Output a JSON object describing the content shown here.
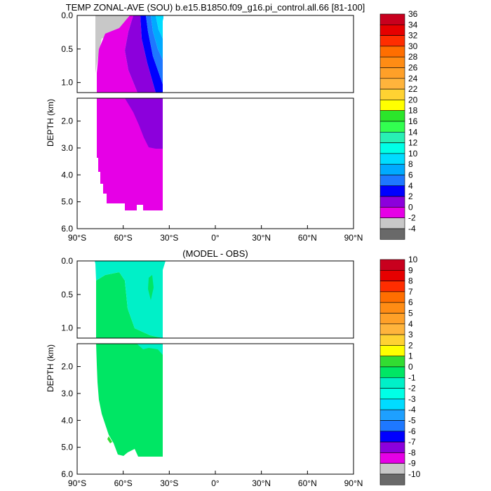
{
  "chart_data": [
    {
      "type": "contour",
      "title": "TEMP ZONAL-AVE (SOU) b.e15.B1850.f09_g16.pi_control.all.66 [81-100]",
      "xlabel": "",
      "ylabel": "DEPTH (km)",
      "xlim": [
        -90,
        90
      ],
      "ylim": [
        6.0,
        0.0
      ],
      "y_axis_break_km": 1.15,
      "xticks": [
        {
          "value": -90,
          "label": "90°S"
        },
        {
          "value": -60,
          "label": "60°S"
        },
        {
          "value": -30,
          "label": "30°S"
        },
        {
          "value": 0,
          "label": "0°"
        },
        {
          "value": 30,
          "label": "30°N"
        },
        {
          "value": 60,
          "label": "60°N"
        },
        {
          "value": 90,
          "label": "90°N"
        }
      ],
      "yticks_upper": [
        {
          "value": 0.0,
          "label": "0.0"
        },
        {
          "value": 0.5,
          "label": "0.5"
        },
        {
          "value": 1.0,
          "label": "1.0"
        }
      ],
      "yticks_lower": [
        {
          "value": 2.0,
          "label": "2.0"
        },
        {
          "value": 3.0,
          "label": "3.0"
        },
        {
          "value": 4.0,
          "label": "4.0"
        },
        {
          "value": 5.0,
          "label": "5.0"
        },
        {
          "value": 6.0,
          "label": "6.0"
        }
      ],
      "colorbar": {
        "labels": [
          "36",
          "34",
          "32",
          "30",
          "28",
          "26",
          "24",
          "22",
          "20",
          "18",
          "16",
          "14",
          "12",
          "10",
          "8",
          "6",
          "4",
          "2",
          "0",
          "-2",
          "-4"
        ],
        "colors": [
          "#c8001e",
          "#e60000",
          "#ff2d00",
          "#ff6e00",
          "#ff8c14",
          "#ffa028",
          "#ffb43c",
          "#ffd232",
          "#ffff00",
          "#2be62b",
          "#32ff50",
          "#28f0b4",
          "#00ffe6",
          "#00dcff",
          "#00aaff",
          "#1e78ff",
          "#0000ff",
          "#8c00dc",
          "#e600e6",
          "#c8c8c8",
          "#696969"
        ]
      },
      "regions": [
        {
          "label": "-2 to 0 °C",
          "color": "#c8c8c8",
          "x": [
            -78.5,
            -72
          ],
          "depth": [
            0.0,
            0.3
          ]
        },
        {
          "label": "0 to 2 °C",
          "color": "#e600e6",
          "x": [
            -77.5,
            -34
          ],
          "depth": [
            0.2,
            5.35
          ]
        },
        {
          "label": "2 to 4 °C",
          "color": "#8c00dc",
          "x": [
            -57,
            -34
          ],
          "depth": [
            0.0,
            3.1
          ]
        },
        {
          "label": "4 to 6 °C",
          "color": "#0000ff",
          "x": [
            -52,
            -34
          ],
          "depth": [
            0.0,
            1.0
          ]
        },
        {
          "label": "6 to 8 °C",
          "color": "#1e78ff",
          "x": [
            -48,
            -34
          ],
          "depth": [
            0.0,
            0.7
          ]
        },
        {
          "label": "8 to 10 °C",
          "color": "#00aaff",
          "x": [
            -45,
            -34
          ],
          "depth": [
            0.0,
            0.45
          ]
        },
        {
          "label": "10 to 14 °C",
          "color": "#00dcff",
          "x": [
            -40,
            -34
          ],
          "depth": [
            0.0,
            0.25
          ]
        }
      ]
    },
    {
      "type": "contour",
      "title": "(MODEL - OBS)",
      "xlabel": "",
      "ylabel": "DEPTH (km)",
      "xlim": [
        -90,
        90
      ],
      "ylim": [
        6.0,
        0.0
      ],
      "y_axis_break_km": 1.15,
      "xticks": [
        {
          "value": -90,
          "label": "90°S"
        },
        {
          "value": -60,
          "label": "60°S"
        },
        {
          "value": -30,
          "label": "30°S"
        },
        {
          "value": 0,
          "label": "0°"
        },
        {
          "value": 30,
          "label": "30°N"
        },
        {
          "value": 60,
          "label": "60°N"
        },
        {
          "value": 90,
          "label": "90°N"
        }
      ],
      "yticks_upper": [
        {
          "value": 0.0,
          "label": "0.0"
        },
        {
          "value": 0.5,
          "label": "0.5"
        },
        {
          "value": 1.0,
          "label": "1.0"
        }
      ],
      "yticks_lower": [
        {
          "value": 2.0,
          "label": "2.0"
        },
        {
          "value": 3.0,
          "label": "3.0"
        },
        {
          "value": 4.0,
          "label": "4.0"
        },
        {
          "value": 5.0,
          "label": "5.0"
        },
        {
          "value": 6.0,
          "label": "6.0"
        }
      ],
      "colorbar": {
        "labels": [
          "10",
          "9",
          "8",
          "7",
          "6",
          "5",
          "4",
          "3",
          "2",
          "1",
          "0",
          "-1",
          "-2",
          "-3",
          "-4",
          "-5",
          "-6",
          "-7",
          "-8",
          "-9",
          "-10"
        ],
        "colors": [
          "#c8001e",
          "#e60000",
          "#ff2d00",
          "#ff6e00",
          "#ff8c14",
          "#ffa028",
          "#ffb43c",
          "#ffd232",
          "#ffff00",
          "#32dc32",
          "#00e664",
          "#00f0c8",
          "#00ffe6",
          "#00dcff",
          "#1ea0ff",
          "#1e78ff",
          "#0000ff",
          "#8c00dc",
          "#e600e6",
          "#c8c8c8",
          "#696969"
        ]
      },
      "regions": [
        {
          "label": "0 to 1 °C",
          "color": "#00e664",
          "x": [
            -77.5,
            -34
          ],
          "depth": [
            0.1,
            5.35
          ]
        },
        {
          "label": "-1 to 0 °C",
          "color": "#00f0c8",
          "x": [
            -78,
            -34
          ],
          "depth": [
            0.0,
            1.25
          ]
        }
      ]
    }
  ]
}
